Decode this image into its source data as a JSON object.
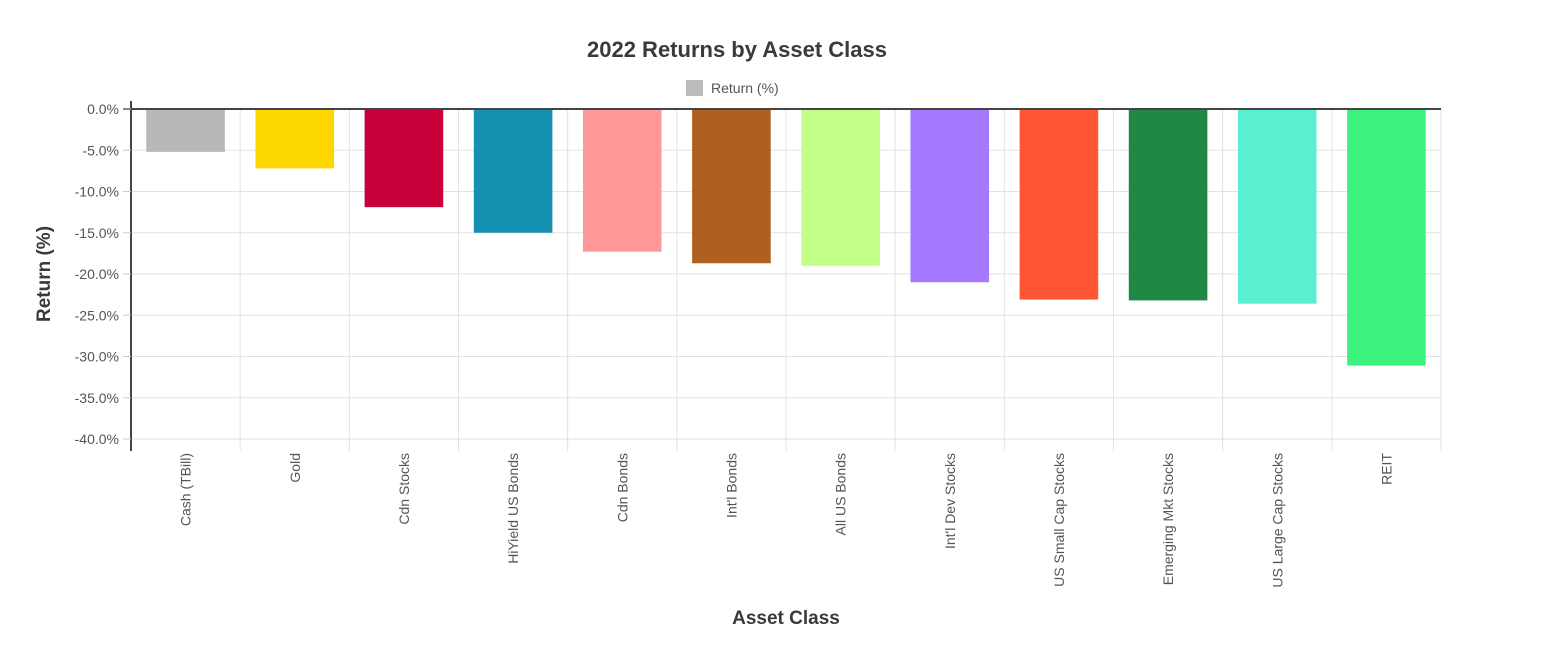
{
  "chart_data": {
    "type": "bar",
    "title": "2022 Returns by Asset Class",
    "xlabel": "Asset Class",
    "ylabel": "Return (%)",
    "ylim": [
      -40,
      0
    ],
    "yticks": [
      0,
      -5,
      -10,
      -15,
      -20,
      -25,
      -30,
      -35,
      -40
    ],
    "ytick_labels": [
      "0.0%",
      "-5.0%",
      "-10.0%",
      "-15.0%",
      "-20.0%",
      "-25.0%",
      "-30.0%",
      "-35.0%",
      "-40.0%"
    ],
    "grid": true,
    "legend": {
      "position": "top-center",
      "entries": [
        {
          "label": "Return (%)",
          "color": "#bbbbbb"
        }
      ]
    },
    "categories": [
      "Cash (TBill)",
      "Gold",
      "Cdn Stocks",
      "HiYield US Bonds",
      "Cdn Bonds",
      "Int'l Bonds",
      "All US Bonds",
      "Int'l Dev Stocks",
      "US Small Cap Stocks",
      "Emerging Mkt Stocks",
      "US Large Cap Stocks",
      "REIT"
    ],
    "series": [
      {
        "values": [
          -5.2,
          -7.2,
          -11.9,
          -15.0,
          -17.3,
          -18.7,
          -19.0,
          -21.0,
          -23.1,
          -23.2,
          -23.6,
          -31.1
        ],
        "colors": [
          "#b8b8b8",
          "#ffd700",
          "#c8003a",
          "#1690b0",
          "#ff9999",
          "#b0601e",
          "#c2ff87",
          "#a478ff",
          "#ff5733",
          "#208845",
          "#5aefd0",
          "#3cf27c"
        ]
      }
    ]
  }
}
